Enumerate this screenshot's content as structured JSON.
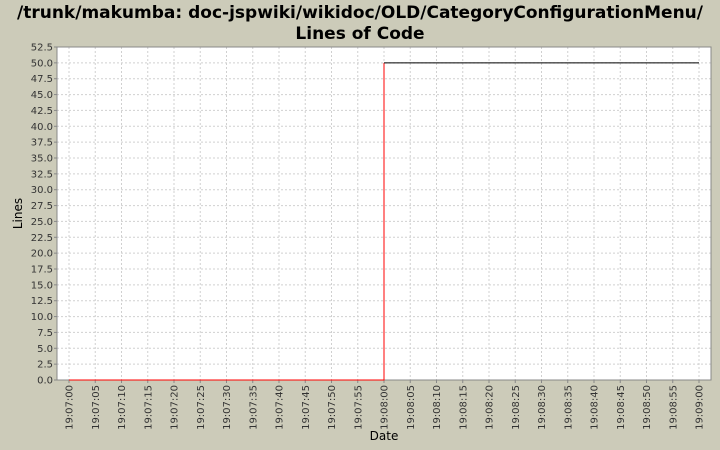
{
  "chart_data": {
    "type": "line",
    "title_lines": [
      "/trunk/makumba: doc-jspwiki/wikidoc/OLD/CategoryConfigurationMenu/",
      "Lines of Code"
    ],
    "xlabel": "Date",
    "ylabel": "Lines",
    "ylim": [
      0,
      52.5
    ],
    "ytick_step": 2.5,
    "yticks": [
      "0.0",
      "2.5",
      "5.0",
      "7.5",
      "10.0",
      "12.5",
      "15.0",
      "17.5",
      "20.0",
      "22.5",
      "25.0",
      "27.5",
      "30.0",
      "32.5",
      "35.0",
      "37.5",
      "40.0",
      "42.5",
      "45.0",
      "47.5",
      "50.0",
      "52.5"
    ],
    "xticks": [
      "19:07:00",
      "19:07:05",
      "19:07:10",
      "19:07:15",
      "19:07:20",
      "19:07:25",
      "19:07:30",
      "19:07:35",
      "19:07:40",
      "19:07:45",
      "19:07:50",
      "19:07:55",
      "19:08:00",
      "19:08:05",
      "19:08:10",
      "19:08:15",
      "19:08:20",
      "19:08:25",
      "19:08:30",
      "19:08:35",
      "19:08:40",
      "19:08:45",
      "19:08:50",
      "19:08:55",
      "19:09:00"
    ],
    "grid": true,
    "series": [
      {
        "color": "#ff0000",
        "points": [
          {
            "x": "19:07:00",
            "y": 0
          },
          {
            "x": "19:08:00",
            "y": 0
          },
          {
            "x": "19:08:00",
            "y": 50
          }
        ]
      },
      {
        "color": "#000000",
        "points": [
          {
            "x": "19:08:00",
            "y": 50
          },
          {
            "x": "19:09:00",
            "y": 50
          }
        ]
      }
    ]
  },
  "colors": {
    "background": "#cccbb9",
    "plot": "#ffffff",
    "grid": "#d0d0d0"
  }
}
